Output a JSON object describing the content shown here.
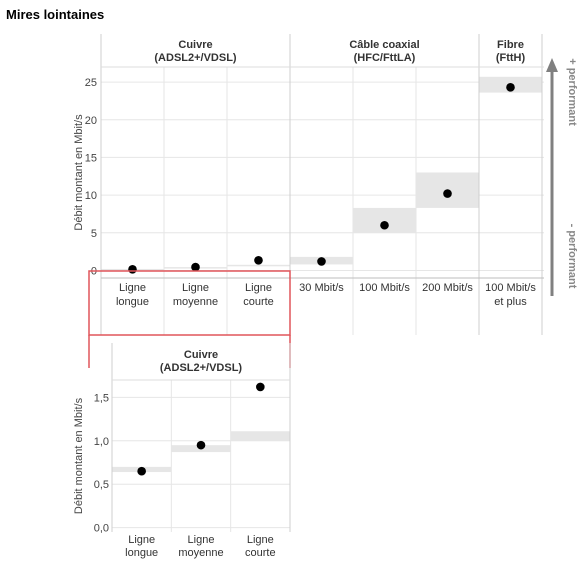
{
  "page_title": "Mires lointaines",
  "chart_data": [
    {
      "type": "scatter",
      "ylabel": "Débit montant en Mbit/s",
      "ylim": [
        -1,
        27
      ],
      "yticks": [
        0,
        5,
        10,
        15,
        20,
        25
      ],
      "ytick_labels": [
        "0",
        "5",
        "10",
        "15",
        "20",
        "25"
      ],
      "groups": [
        {
          "title_line1": "Cuivre",
          "title_line2": "(ADSL2+/VDSL)",
          "categories": [
            {
              "line1": "Ligne",
              "line2": "longue"
            },
            {
              "line1": "Ligne",
              "line2": "moyenne"
            },
            {
              "line1": "Ligne",
              "line2": "courte"
            }
          ],
          "values": [
            0.15,
            0.45,
            1.35
          ],
          "band_low": [
            0.0,
            0.25,
            0.6
          ],
          "band_high": [
            0.2,
            0.45,
            0.75
          ]
        },
        {
          "title_line1": "Câble coaxial",
          "title_line2": "(HFC/FttLA)",
          "categories": [
            {
              "line1": "30 Mbit/s",
              "line2": ""
            },
            {
              "line1": "100 Mbit/s",
              "line2": ""
            },
            {
              "line1": "200 Mbit/s",
              "line2": ""
            }
          ],
          "values": [
            1.2,
            6.0,
            10.2
          ],
          "band_low": [
            0.8,
            5.0,
            8.3
          ],
          "band_high": [
            1.8,
            8.3,
            13.0
          ]
        },
        {
          "title_line1": "Fibre",
          "title_line2": "(FttH)",
          "categories": [
            {
              "line1": "100 Mbit/s",
              "line2": "et plus"
            }
          ],
          "values": [
            24.3
          ],
          "band_low": [
            23.6
          ],
          "band_high": [
            25.7
          ]
        }
      ],
      "arrow_top_label": "+ performant",
      "arrow_bottom_label": "- performant",
      "colors": {
        "points": "#000000",
        "bands": "#e6e6e6",
        "highlight": "#e0555a",
        "arrow": "#808080",
        "grid": "#e6e6e6"
      }
    },
    {
      "type": "scatter",
      "ylabel": "Débit montant en Mbit/s",
      "ylim": [
        -0.05,
        1.7
      ],
      "yticks": [
        0.0,
        0.5,
        1.0,
        1.5
      ],
      "ytick_labels": [
        "0,0",
        "0,5",
        "1,0",
        "1,5"
      ],
      "group": {
        "title_line1": "Cuivre",
        "title_line2": "(ADSL2+/VDSL)",
        "categories": [
          {
            "line1": "Ligne",
            "line2": "longue"
          },
          {
            "line1": "Ligne",
            "line2": "moyenne"
          },
          {
            "line1": "Ligne",
            "line2": "courte"
          }
        ],
        "values": [
          0.65,
          0.95,
          1.62
        ],
        "band_low": [
          0.64,
          0.87,
          1.0
        ],
        "band_high": [
          0.7,
          0.95,
          1.11
        ]
      },
      "colors": {
        "points": "#000000",
        "bands": "#e6e6e6",
        "grid": "#e6e6e6"
      }
    }
  ]
}
